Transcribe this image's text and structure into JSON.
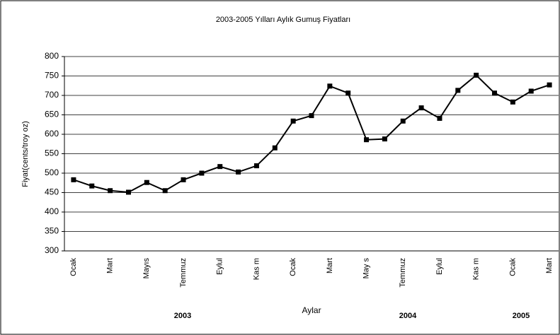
{
  "chart_data": {
    "type": "line",
    "title": "2003-2005 Yılları Aylık Gumuş Fiyatları",
    "x_label": "Aylar",
    "y_label": "Fiyat(cents/troy oz)",
    "year_labels": [
      "2003",
      "2004",
      "2005"
    ],
    "categories": [
      "Ocak",
      null,
      "Mart",
      null,
      "Mayıs",
      null,
      "Temmuz",
      null,
      "Eylul",
      null,
      "Kas m",
      null,
      "Ocak",
      null,
      "Mart",
      null,
      "May s",
      null,
      "Temmuz",
      null,
      "Eylul",
      null,
      "Kas m",
      null,
      "Ocak",
      null,
      "Mart"
    ],
    "series": [
      {
        "name": "Gumuş",
        "color": "#000000",
        "values": [
          483,
          467,
          455,
          451,
          476,
          455,
          483,
          500,
          517,
          503,
          519,
          565,
          634,
          648,
          724,
          706,
          586,
          588,
          634,
          668,
          641,
          713,
          752,
          706,
          683,
          711,
          727
        ]
      }
    ],
    "ylim": [
      300,
      800
    ],
    "yticks": [
      300,
      350,
      400,
      450,
      500,
      550,
      600,
      650,
      700,
      750,
      800
    ],
    "grid": true
  }
}
